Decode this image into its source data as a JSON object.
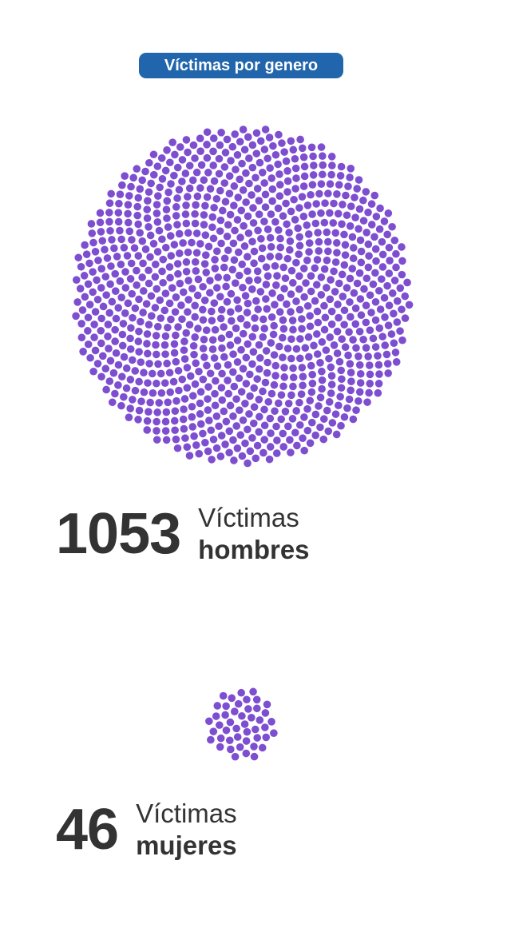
{
  "title": "Víctimas por genero",
  "colors": {
    "title_bg": "#2166ac",
    "dot": "#7d4fd0",
    "text": "#333333"
  },
  "chart_data": {
    "type": "dot-cluster",
    "title": "Víctimas por genero",
    "series": [
      {
        "name": "hombres",
        "value": 1053,
        "label_line1": "Víctimas",
        "label_line2": "hombres"
      },
      {
        "name": "mujeres",
        "value": 46,
        "label_line1": "Víctimas",
        "label_line2": "mujeres"
      }
    ]
  }
}
